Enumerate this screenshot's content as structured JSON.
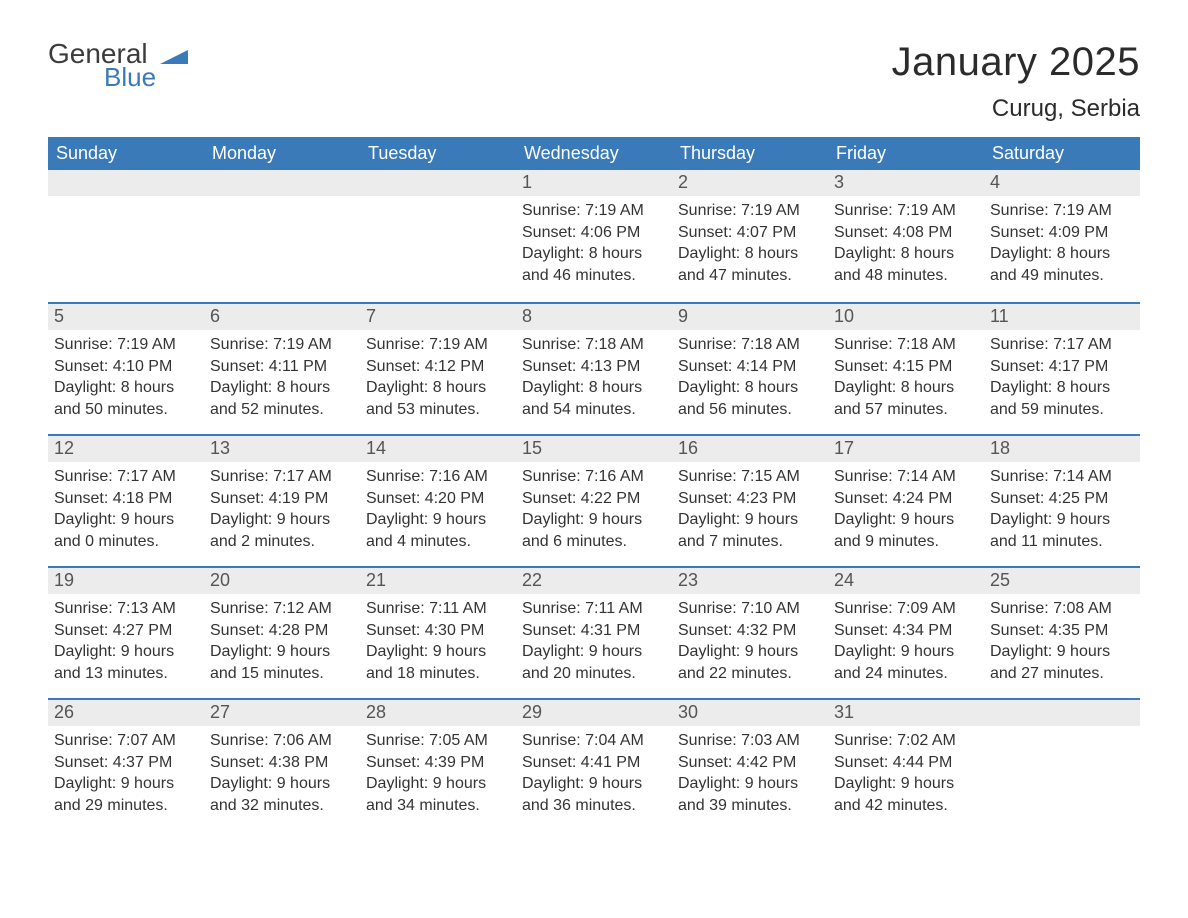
{
  "logo": {
    "text_general": "General",
    "text_blue": "Blue",
    "flag_color": "#3a7ab8"
  },
  "title": "January 2025",
  "location": "Curug, Serbia",
  "colors": {
    "header_bg": "#3a7ab8",
    "header_text": "#ffffff",
    "daynum_bg": "#ececec",
    "daynum_text": "#555555",
    "body_text": "#333333",
    "rule": "#3a7ab8",
    "page_bg": "#ffffff"
  },
  "fonts": {
    "title_size_pt": 30,
    "location_size_pt": 18,
    "dow_size_pt": 14,
    "daynum_size_pt": 14,
    "body_size_pt": 12,
    "family": "Arial"
  },
  "days_of_week": [
    "Sunday",
    "Monday",
    "Tuesday",
    "Wednesday",
    "Thursday",
    "Friday",
    "Saturday"
  ],
  "labels": {
    "sunrise": "Sunrise:",
    "sunset": "Sunset:",
    "daylight": "Daylight:"
  },
  "weeks": [
    [
      null,
      null,
      null,
      {
        "n": "1",
        "sunrise": "7:19 AM",
        "sunset": "4:06 PM",
        "dl1": "8 hours",
        "dl2": "and 46 minutes."
      },
      {
        "n": "2",
        "sunrise": "7:19 AM",
        "sunset": "4:07 PM",
        "dl1": "8 hours",
        "dl2": "and 47 minutes."
      },
      {
        "n": "3",
        "sunrise": "7:19 AM",
        "sunset": "4:08 PM",
        "dl1": "8 hours",
        "dl2": "and 48 minutes."
      },
      {
        "n": "4",
        "sunrise": "7:19 AM",
        "sunset": "4:09 PM",
        "dl1": "8 hours",
        "dl2": "and 49 minutes."
      }
    ],
    [
      {
        "n": "5",
        "sunrise": "7:19 AM",
        "sunset": "4:10 PM",
        "dl1": "8 hours",
        "dl2": "and 50 minutes."
      },
      {
        "n": "6",
        "sunrise": "7:19 AM",
        "sunset": "4:11 PM",
        "dl1": "8 hours",
        "dl2": "and 52 minutes."
      },
      {
        "n": "7",
        "sunrise": "7:19 AM",
        "sunset": "4:12 PM",
        "dl1": "8 hours",
        "dl2": "and 53 minutes."
      },
      {
        "n": "8",
        "sunrise": "7:18 AM",
        "sunset": "4:13 PM",
        "dl1": "8 hours",
        "dl2": "and 54 minutes."
      },
      {
        "n": "9",
        "sunrise": "7:18 AM",
        "sunset": "4:14 PM",
        "dl1": "8 hours",
        "dl2": "and 56 minutes."
      },
      {
        "n": "10",
        "sunrise": "7:18 AM",
        "sunset": "4:15 PM",
        "dl1": "8 hours",
        "dl2": "and 57 minutes."
      },
      {
        "n": "11",
        "sunrise": "7:17 AM",
        "sunset": "4:17 PM",
        "dl1": "8 hours",
        "dl2": "and 59 minutes."
      }
    ],
    [
      {
        "n": "12",
        "sunrise": "7:17 AM",
        "sunset": "4:18 PM",
        "dl1": "9 hours",
        "dl2": "and 0 minutes."
      },
      {
        "n": "13",
        "sunrise": "7:17 AM",
        "sunset": "4:19 PM",
        "dl1": "9 hours",
        "dl2": "and 2 minutes."
      },
      {
        "n": "14",
        "sunrise": "7:16 AM",
        "sunset": "4:20 PM",
        "dl1": "9 hours",
        "dl2": "and 4 minutes."
      },
      {
        "n": "15",
        "sunrise": "7:16 AM",
        "sunset": "4:22 PM",
        "dl1": "9 hours",
        "dl2": "and 6 minutes."
      },
      {
        "n": "16",
        "sunrise": "7:15 AM",
        "sunset": "4:23 PM",
        "dl1": "9 hours",
        "dl2": "and 7 minutes."
      },
      {
        "n": "17",
        "sunrise": "7:14 AM",
        "sunset": "4:24 PM",
        "dl1": "9 hours",
        "dl2": "and 9 minutes."
      },
      {
        "n": "18",
        "sunrise": "7:14 AM",
        "sunset": "4:25 PM",
        "dl1": "9 hours",
        "dl2": "and 11 minutes."
      }
    ],
    [
      {
        "n": "19",
        "sunrise": "7:13 AM",
        "sunset": "4:27 PM",
        "dl1": "9 hours",
        "dl2": "and 13 minutes."
      },
      {
        "n": "20",
        "sunrise": "7:12 AM",
        "sunset": "4:28 PM",
        "dl1": "9 hours",
        "dl2": "and 15 minutes."
      },
      {
        "n": "21",
        "sunrise": "7:11 AM",
        "sunset": "4:30 PM",
        "dl1": "9 hours",
        "dl2": "and 18 minutes."
      },
      {
        "n": "22",
        "sunrise": "7:11 AM",
        "sunset": "4:31 PM",
        "dl1": "9 hours",
        "dl2": "and 20 minutes."
      },
      {
        "n": "23",
        "sunrise": "7:10 AM",
        "sunset": "4:32 PM",
        "dl1": "9 hours",
        "dl2": "and 22 minutes."
      },
      {
        "n": "24",
        "sunrise": "7:09 AM",
        "sunset": "4:34 PM",
        "dl1": "9 hours",
        "dl2": "and 24 minutes."
      },
      {
        "n": "25",
        "sunrise": "7:08 AM",
        "sunset": "4:35 PM",
        "dl1": "9 hours",
        "dl2": "and 27 minutes."
      }
    ],
    [
      {
        "n": "26",
        "sunrise": "7:07 AM",
        "sunset": "4:37 PM",
        "dl1": "9 hours",
        "dl2": "and 29 minutes."
      },
      {
        "n": "27",
        "sunrise": "7:06 AM",
        "sunset": "4:38 PM",
        "dl1": "9 hours",
        "dl2": "and 32 minutes."
      },
      {
        "n": "28",
        "sunrise": "7:05 AM",
        "sunset": "4:39 PM",
        "dl1": "9 hours",
        "dl2": "and 34 minutes."
      },
      {
        "n": "29",
        "sunrise": "7:04 AM",
        "sunset": "4:41 PM",
        "dl1": "9 hours",
        "dl2": "and 36 minutes."
      },
      {
        "n": "30",
        "sunrise": "7:03 AM",
        "sunset": "4:42 PM",
        "dl1": "9 hours",
        "dl2": "and 39 minutes."
      },
      {
        "n": "31",
        "sunrise": "7:02 AM",
        "sunset": "4:44 PM",
        "dl1": "9 hours",
        "dl2": "and 42 minutes."
      },
      null
    ]
  ]
}
